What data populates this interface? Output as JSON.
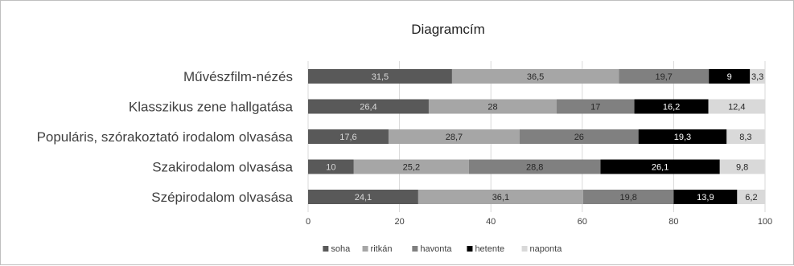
{
  "chart_data": {
    "type": "bar",
    "orientation": "horizontal",
    "stacked": true,
    "title": "Diagramcím",
    "categories": [
      "Művészfilm-nézés",
      "Klasszikus zene hallgatása",
      "Populáris, szórakoztató irodalom olvasása",
      "Szakirodalom olvasása",
      "Szépirodalom olvasása"
    ],
    "series": [
      {
        "name": "soha",
        "color": "#595959",
        "label_color": "#d9d9d9",
        "values": [
          31.5,
          26.4,
          17.6,
          10,
          24.1
        ]
      },
      {
        "name": "ritkán",
        "color": "#a6a6a6",
        "label_color": "#262626",
        "values": [
          36.5,
          28,
          28.7,
          25.2,
          36.1
        ]
      },
      {
        "name": "havonta",
        "color": "#808080",
        "label_color": "#262626",
        "values": [
          19.7,
          17,
          26,
          28.8,
          19.8
        ]
      },
      {
        "name": "hetente",
        "color": "#000000",
        "label_color": "#ffffff",
        "values": [
          9,
          16.2,
          19.3,
          26.1,
          13.9
        ]
      },
      {
        "name": "naponta",
        "color": "#d9d9d9",
        "label_color": "#262626",
        "values": [
          3.3,
          12.4,
          8.3,
          9.8,
          6.2
        ]
      }
    ],
    "value_labels": [
      [
        "31,5",
        "36,5",
        "19,7",
        "9",
        "3,3"
      ],
      [
        "26,4",
        "28",
        "17",
        "16,2",
        "12,4"
      ],
      [
        "17,6",
        "28,7",
        "26",
        "19,3",
        "8,3"
      ],
      [
        "10",
        "25,2",
        "28,8",
        "26,1",
        "9,8"
      ],
      [
        "24,1",
        "36,1",
        "19,8",
        "13,9",
        "6,2"
      ]
    ],
    "xlim": [
      0,
      100
    ],
    "xticks": [
      0,
      20,
      40,
      60,
      80,
      100
    ],
    "xtick_labels": [
      "0",
      "20",
      "40",
      "60",
      "80",
      "100"
    ],
    "grid": true,
    "legend_position": "bottom"
  }
}
